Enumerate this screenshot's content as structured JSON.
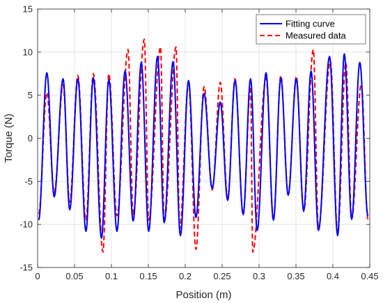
{
  "chart_data": {
    "type": "line",
    "title": "",
    "xlabel": "Position (m)",
    "ylabel": "Torque (N)",
    "xlim": [
      0,
      0.45
    ],
    "ylim": [
      -15,
      15
    ],
    "xticks": [
      0,
      0.05,
      0.1,
      0.15,
      0.2,
      0.25,
      0.3,
      0.35,
      0.4,
      0.45
    ],
    "xtick_labels": [
      "0",
      "0.05",
      "0.1",
      "0.15",
      "0.2",
      "0.25",
      "0.3",
      "0.35",
      "0.4",
      "0.45"
    ],
    "yticks": [
      -15,
      -10,
      -5,
      0,
      5,
      10,
      15
    ],
    "ytick_labels": [
      "-15",
      "-10",
      "-5",
      "0",
      "5",
      "10",
      "15"
    ],
    "grid": true,
    "legend_position": "top-right",
    "series": [
      {
        "name": "Fitting curve",
        "color": "#0000ff",
        "style": "solid",
        "peaks": [
          [
            0.0125,
            7.6
          ],
          [
            0.0345,
            6.9
          ],
          [
            0.0545,
            6.9
          ],
          [
            0.0755,
            7.0
          ],
          [
            0.0965,
            6.8
          ],
          [
            0.1185,
            7.8
          ],
          [
            0.1405,
            8.8
          ],
          [
            0.1625,
            9.5
          ],
          [
            0.1835,
            8.9
          ],
          [
            0.2045,
            6.7
          ],
          [
            0.2255,
            5.2
          ],
          [
            0.2475,
            4.2
          ],
          [
            0.2675,
            6.7
          ],
          [
            0.2885,
            6.9
          ],
          [
            0.3095,
            7.6
          ],
          [
            0.3295,
            7.0
          ],
          [
            0.3505,
            6.9
          ],
          [
            0.3705,
            7.8
          ],
          [
            0.3955,
            9.5
          ],
          [
            0.4155,
            9.8
          ],
          [
            0.4365,
            8.8
          ]
        ],
        "troughs": [
          [
            0.0015,
            -9.5
          ],
          [
            0.0225,
            -6.8
          ],
          [
            0.0435,
            -8.3
          ],
          [
            0.0655,
            -10.8
          ],
          [
            0.0865,
            -11.6
          ],
          [
            0.1075,
            -10.8
          ],
          [
            0.1295,
            -9.6
          ],
          [
            0.1505,
            -10.8
          ],
          [
            0.1715,
            -9.8
          ],
          [
            0.1935,
            -11.3
          ],
          [
            0.2145,
            -9.2
          ],
          [
            0.2365,
            -5.8
          ],
          [
            0.2575,
            -7.2
          ],
          [
            0.2785,
            -8.8
          ],
          [
            0.2975,
            -10.7
          ],
          [
            0.3195,
            -9.5
          ],
          [
            0.3395,
            -6.6
          ],
          [
            0.3605,
            -8.4
          ],
          [
            0.3805,
            -10.7
          ],
          [
            0.4065,
            -11.3
          ],
          [
            0.4255,
            -9.4
          ],
          [
            0.4475,
            -9.0
          ]
        ]
      },
      {
        "name": "Measured data",
        "color": "#ff0000",
        "style": "dashed",
        "peaks": [
          [
            0.0125,
            5.3
          ],
          [
            0.0345,
            6.2
          ],
          [
            0.0545,
            7.3
          ],
          [
            0.0755,
            7.5
          ],
          [
            0.0965,
            7.5
          ],
          [
            0.1225,
            10.3
          ],
          [
            0.1445,
            11.5
          ],
          [
            0.1665,
            10.6
          ],
          [
            0.1875,
            10.6
          ],
          [
            0.2045,
            6.5
          ],
          [
            0.2255,
            6.0
          ],
          [
            0.2475,
            6.5
          ],
          [
            0.2675,
            6.9
          ],
          [
            0.2885,
            6.0
          ],
          [
            0.3095,
            7.0
          ],
          [
            0.3295,
            7.3
          ],
          [
            0.3505,
            7.2
          ],
          [
            0.3735,
            10.3
          ],
          [
            0.3965,
            9.0
          ],
          [
            0.4175,
            8.8
          ],
          [
            0.4385,
            6.3
          ]
        ],
        "troughs": [
          [
            0.0015,
            -8.8
          ],
          [
            0.0225,
            -6.3
          ],
          [
            0.0435,
            -7.4
          ],
          [
            0.0655,
            -9.5
          ],
          [
            0.0885,
            -13.2
          ],
          [
            0.1075,
            -9.0
          ],
          [
            0.1295,
            -8.8
          ],
          [
            0.1505,
            -9.5
          ],
          [
            0.1715,
            -9.7
          ],
          [
            0.1925,
            -10.5
          ],
          [
            0.2145,
            -12.9
          ],
          [
            0.2365,
            -6.0
          ],
          [
            0.2575,
            -7.0
          ],
          [
            0.2785,
            -8.9
          ],
          [
            0.2915,
            -13.2
          ],
          [
            0.3195,
            -9.5
          ],
          [
            0.3395,
            -6.5
          ],
          [
            0.3605,
            -8.5
          ],
          [
            0.3805,
            -10.5
          ],
          [
            0.4065,
            -11.0
          ],
          [
            0.4255,
            -9.3
          ],
          [
            0.4475,
            -9.4
          ]
        ]
      }
    ]
  }
}
